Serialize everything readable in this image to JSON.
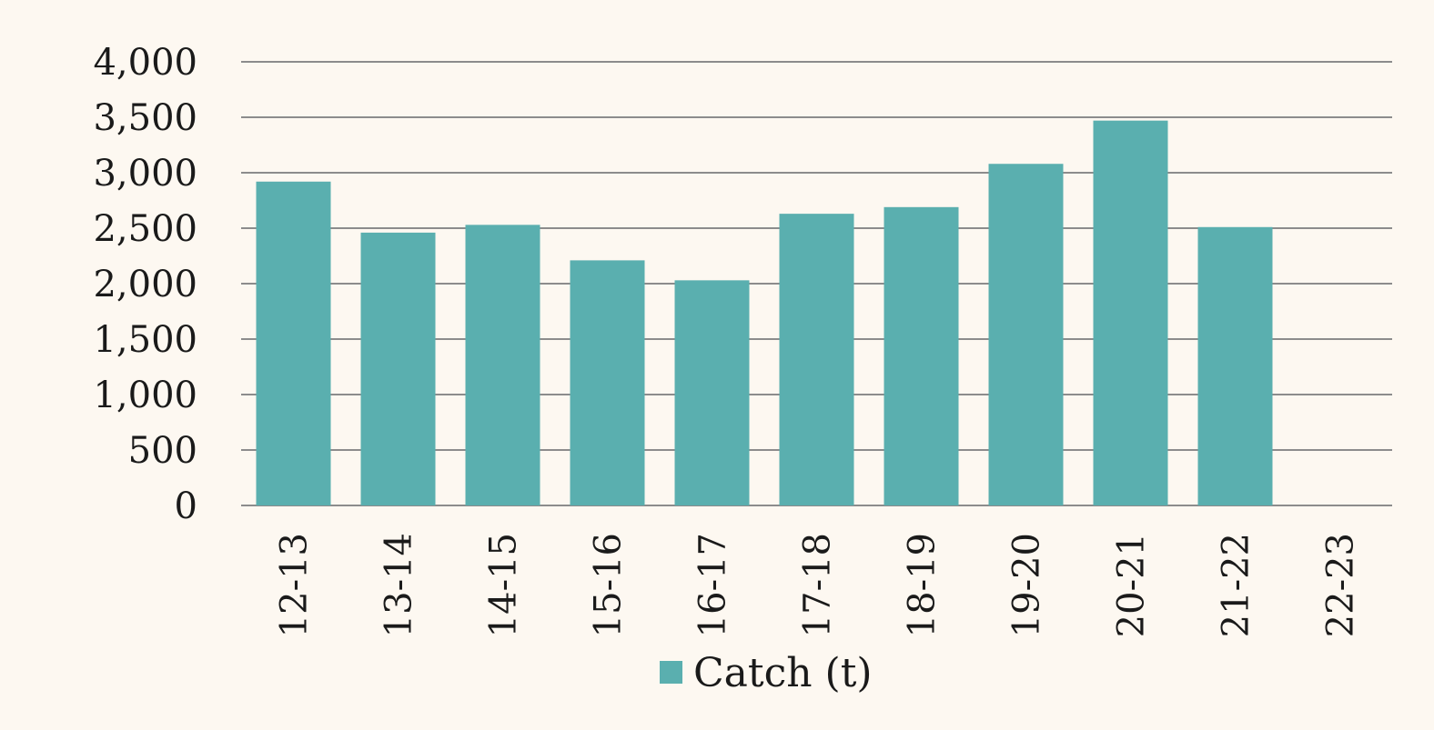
{
  "chart_data": {
    "type": "bar",
    "categories": [
      "12-13",
      "13-14",
      "14-15",
      "15-16",
      "16-17",
      "17-18",
      "18-19",
      "19-20",
      "20-21",
      "21-22",
      "22-23"
    ],
    "series": [
      {
        "name": "Catch (t)",
        "values": [
          2920,
          2460,
          2530,
          2210,
          2030,
          2630,
          2690,
          3080,
          3470,
          2510,
          null
        ],
        "color": "#5aafaf"
      }
    ],
    "title": "",
    "xlabel": "",
    "ylabel": "",
    "ylim": [
      0,
      4000
    ],
    "yticks": [
      0,
      500,
      1000,
      1500,
      2000,
      2500,
      3000,
      3500,
      4000
    ],
    "ytick_labels": [
      "0",
      "500",
      "1,000",
      "1,500",
      "2,000",
      "2,500",
      "3,000",
      "3,500",
      "4,000"
    ],
    "grid": true,
    "legend": "bottom-center",
    "colors": {
      "background": "#fdf8f1",
      "gridline": "#8c8c8c",
      "text": "#1a1a1a"
    }
  }
}
